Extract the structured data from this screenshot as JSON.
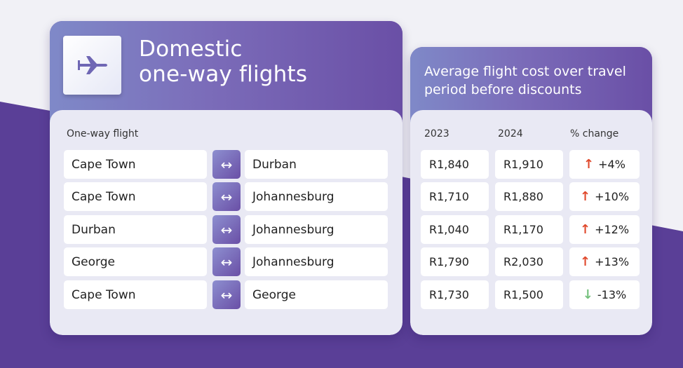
{
  "left_card": {
    "title_line1": "Domestic",
    "title_line2": "one-way flights",
    "icon": "airplane-icon",
    "column_label": "One-way flight",
    "routes": [
      {
        "from": "Cape Town",
        "to": "Durban"
      },
      {
        "from": "Cape Town",
        "to": "Johannesburg"
      },
      {
        "from": "Durban",
        "to": "Johannesburg"
      },
      {
        "from": "George",
        "to": "Johannesburg"
      },
      {
        "from": "Cape Town",
        "to": "George"
      }
    ],
    "route_arrow": "↔"
  },
  "right_card": {
    "title": "Average flight cost over travel period before discounts",
    "headers": {
      "y2023": "2023",
      "y2024": "2024",
      "change": "% change"
    },
    "rows": [
      {
        "y2023": "R1,840",
        "y2024": "R1,910",
        "change": "+4%",
        "direction": "up"
      },
      {
        "y2023": "R1,710",
        "y2024": "R1,880",
        "change": "+10%",
        "direction": "up"
      },
      {
        "y2023": "R1,040",
        "y2024": "R1,170",
        "change": "+12%",
        "direction": "up"
      },
      {
        "y2023": "R1,790",
        "y2024": "R2,030",
        "change": "+13%",
        "direction": "up"
      },
      {
        "y2023": "R1,730",
        "y2024": "R1,500",
        "change": "-13%",
        "direction": "down"
      }
    ],
    "arrow_up": "↑",
    "arrow_down": "↓"
  },
  "colors": {
    "accent_purple": "#6a4fa6",
    "increase": "#e0492c",
    "decrease": "#74c17c"
  }
}
